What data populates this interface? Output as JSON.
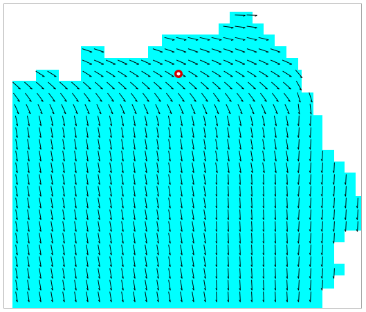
{
  "view": {
    "type": "vector-field-map",
    "domain_fill_color": "#00ffff",
    "arrow_color": "#000000",
    "marker": {
      "shape": "ring",
      "outer_color": "#d40000",
      "inner_color": "#ffffff"
    }
  }
}
